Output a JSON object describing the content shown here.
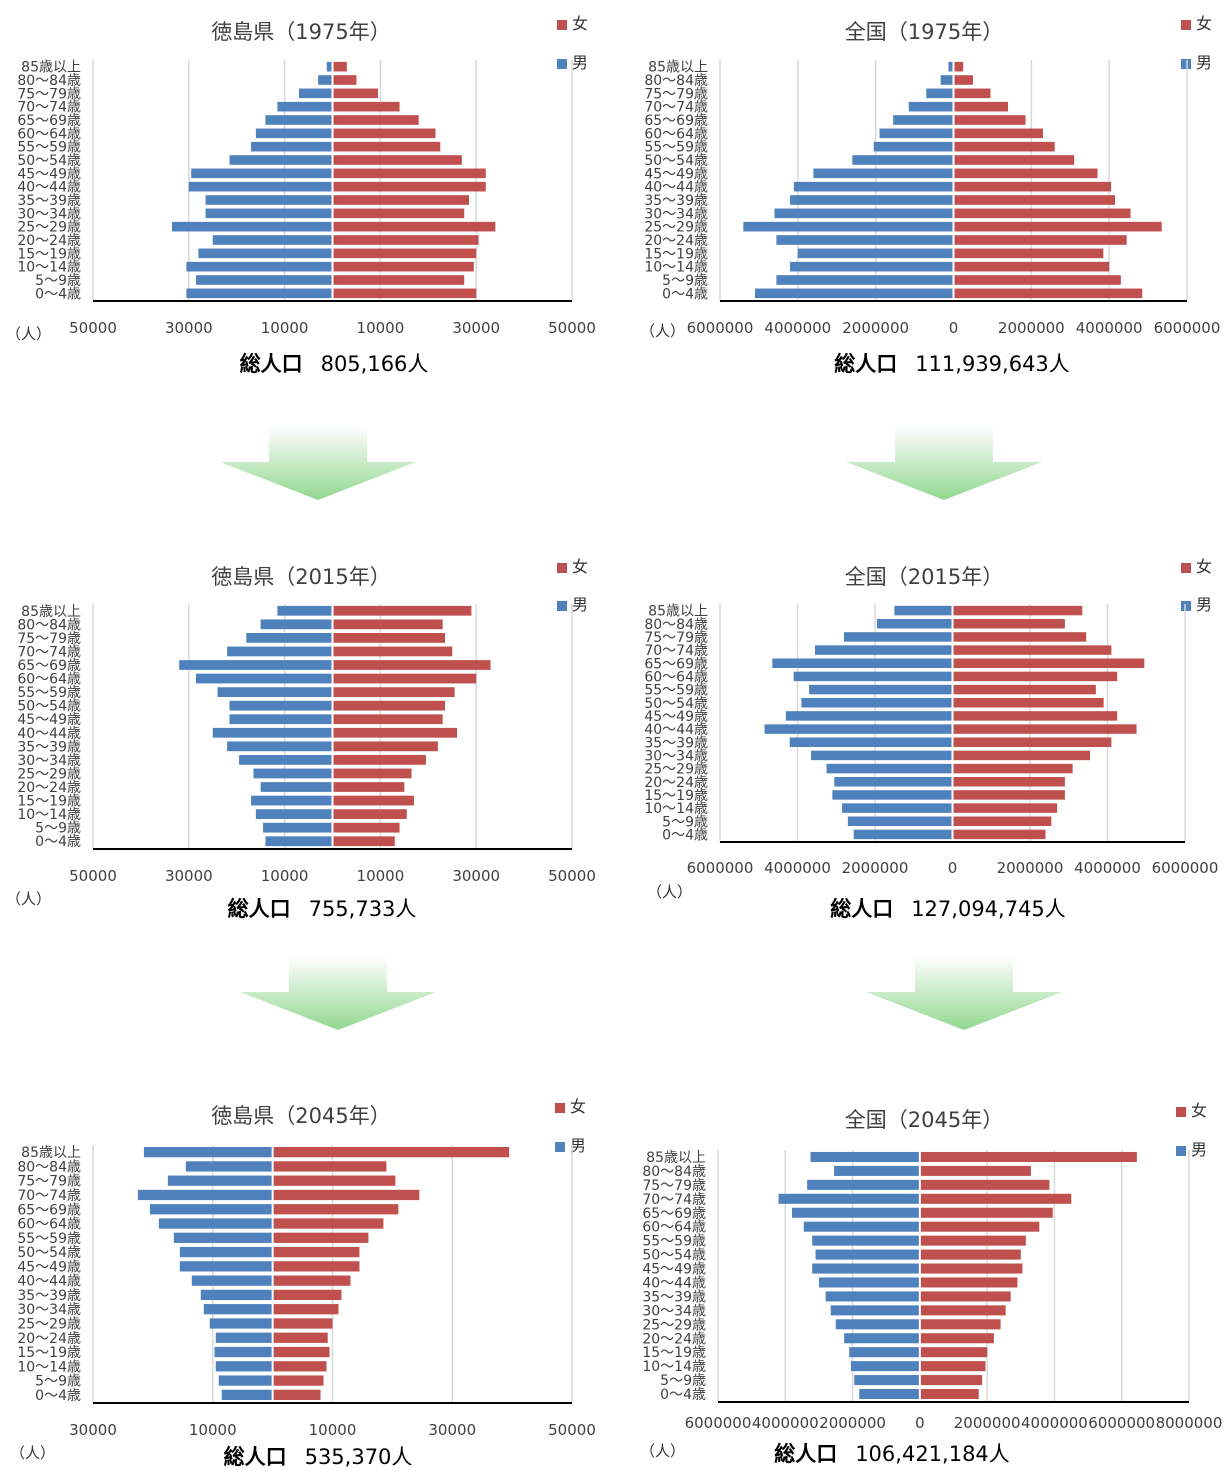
{
  "colors": {
    "female": "#C0504D",
    "male": "#4F81BD",
    "grid": "#D9D9D9",
    "axis": "#000000"
  },
  "legend": {
    "female": "女",
    "male": "男"
  },
  "unit_label": "（人）",
  "total_label": "総人口",
  "age_groups": [
    "0～4歳",
    "5～9歳",
    "10～14歳",
    "15～19歳",
    "20～24歳",
    "25～29歳",
    "30～34歳",
    "35～39歳",
    "40～44歳",
    "45～49歳",
    "50～54歳",
    "55～59歳",
    "60～64歳",
    "65～69歳",
    "70～74歳",
    "75～79歳",
    "80～84歳",
    "85歳以上"
  ],
  "chart_data": [
    {
      "type": "bar",
      "orientation": "horizontal-population-pyramid",
      "title": "徳島県（1975年）",
      "total": "805,166人",
      "xlim": [
        -50000,
        50000
      ],
      "tick_values": [
        -50000,
        -30000,
        -10000,
        10000,
        30000,
        50000
      ],
      "tick_labels": [
        "50000",
        "30000",
        "10000",
        "10000",
        "30000",
        "50000"
      ],
      "series": [
        {
          "name": "男",
          "values": [
            30500,
            28500,
            30500,
            28000,
            25000,
            33500,
            26500,
            26500,
            30000,
            29500,
            21500,
            17000,
            16000,
            14000,
            11500,
            7000,
            3000,
            1200
          ]
        },
        {
          "name": "女",
          "values": [
            30000,
            27500,
            29500,
            30000,
            30500,
            34000,
            27500,
            28500,
            32000,
            32000,
            27000,
            22500,
            21500,
            18000,
            14000,
            9500,
            5000,
            3000
          ]
        }
      ]
    },
    {
      "type": "bar",
      "orientation": "horizontal-population-pyramid",
      "title": "全国（1975年）",
      "total": "111,939,643人",
      "xlim": [
        -6000000,
        6000000
      ],
      "tick_values": [
        -6000000,
        -4000000,
        -2000000,
        0,
        2000000,
        4000000,
        6000000
      ],
      "tick_labels": [
        "6000000",
        "4000000",
        "2000000",
        "0",
        "2000000",
        "4000000",
        "6000000"
      ],
      "series": [
        {
          "name": "男",
          "values": [
            5100000,
            4550000,
            4200000,
            4000000,
            4550000,
            5400000,
            4600000,
            4200000,
            4100000,
            3600000,
            2600000,
            2050000,
            1900000,
            1550000,
            1150000,
            700000,
            330000,
            130000
          ]
        },
        {
          "name": "女",
          "values": [
            4850000,
            4300000,
            4000000,
            3850000,
            4450000,
            5350000,
            4550000,
            4150000,
            4050000,
            3700000,
            3100000,
            2600000,
            2300000,
            1850000,
            1400000,
            950000,
            500000,
            250000
          ]
        }
      ]
    },
    {
      "type": "bar",
      "orientation": "horizontal-population-pyramid",
      "title": "徳島県（2015年）",
      "total": "755,733人",
      "xlim": [
        -50000,
        50000
      ],
      "tick_values": [
        -50000,
        -30000,
        -10000,
        10000,
        30000,
        50000
      ],
      "tick_labels": [
        "50000",
        "30000",
        "10000",
        "10000",
        "30000",
        "50000"
      ],
      "series": [
        {
          "name": "男",
          "values": [
            14000,
            14500,
            16000,
            17000,
            15000,
            16500,
            19500,
            22000,
            25000,
            21500,
            21500,
            24000,
            28500,
            32000,
            22000,
            18000,
            15000,
            11500
          ]
        },
        {
          "name": "女",
          "values": [
            13000,
            14000,
            15500,
            17000,
            15000,
            16500,
            19500,
            22000,
            26000,
            23000,
            23500,
            25500,
            30000,
            33000,
            25000,
            23500,
            23000,
            29000
          ]
        }
      ]
    },
    {
      "type": "bar",
      "orientation": "horizontal-population-pyramid",
      "title": "全国（2015年）",
      "total": "127,094,745人",
      "xlim": [
        -6000000,
        6000000
      ],
      "tick_values": [
        -6000000,
        -4000000,
        -2000000,
        0,
        2000000,
        4000000,
        6000000
      ],
      "tick_labels": [
        "6000000",
        "4000000",
        "2000000",
        "0",
        "2000000",
        "4000000",
        "6000000"
      ],
      "series": [
        {
          "name": "男",
          "values": [
            2550000,
            2700000,
            2850000,
            3100000,
            3050000,
            3250000,
            3650000,
            4200000,
            4850000,
            4300000,
            3900000,
            3700000,
            4100000,
            4650000,
            3550000,
            2800000,
            1950000,
            1500000
          ]
        },
        {
          "name": "女",
          "values": [
            2400000,
            2550000,
            2700000,
            2900000,
            2900000,
            3100000,
            3550000,
            4100000,
            4750000,
            4250000,
            3900000,
            3700000,
            4250000,
            4950000,
            4100000,
            3450000,
            2900000,
            3350000
          ]
        }
      ]
    },
    {
      "type": "bar",
      "orientation": "horizontal-population-pyramid",
      "title": "徳島県（2045年）",
      "total": "535,370人",
      "xlim": [
        -30000,
        50000
      ],
      "tick_values": [
        -30000,
        -10000,
        10000,
        30000,
        50000
      ],
      "tick_labels": [
        "30000",
        "10000",
        "10000",
        "30000",
        "50000"
      ],
      "series": [
        {
          "name": "男",
          "values": [
            8500,
            9000,
            9500,
            9700,
            9500,
            10500,
            11500,
            12000,
            13500,
            15500,
            15500,
            16500,
            19000,
            20500,
            22500,
            17500,
            14500,
            21500
          ]
        },
        {
          "name": "女",
          "values": [
            8000,
            8500,
            9000,
            9500,
            9200,
            10000,
            11000,
            11500,
            13000,
            14500,
            14500,
            16000,
            18500,
            21000,
            24500,
            20500,
            19000,
            39500
          ]
        }
      ]
    },
    {
      "type": "bar",
      "orientation": "horizontal-population-pyramid",
      "title": "全国（2045年）",
      "total": "106,421,184人",
      "xlim": [
        -6000000,
        8000000
      ],
      "tick_values": [
        -6000000,
        -4000000,
        -2000000,
        0,
        2000000,
        4000000,
        6000000,
        8000000
      ],
      "tick_labels": [
        "6000000",
        "4000000",
        "2000000",
        "0",
        "2000000",
        "4000000",
        "6000000",
        "8000000"
      ],
      "series": [
        {
          "name": "男",
          "values": [
            1800000,
            1950000,
            2050000,
            2100000,
            2250000,
            2500000,
            2650000,
            2800000,
            3000000,
            3200000,
            3100000,
            3200000,
            3450000,
            3800000,
            4200000,
            3350000,
            2550000,
            3250000
          ]
        },
        {
          "name": "女",
          "values": [
            1750000,
            1850000,
            1950000,
            2000000,
            2200000,
            2400000,
            2550000,
            2700000,
            2900000,
            3050000,
            3000000,
            3150000,
            3550000,
            3950000,
            4500000,
            3850000,
            3300000,
            6450000
          ]
        }
      ]
    }
  ]
}
